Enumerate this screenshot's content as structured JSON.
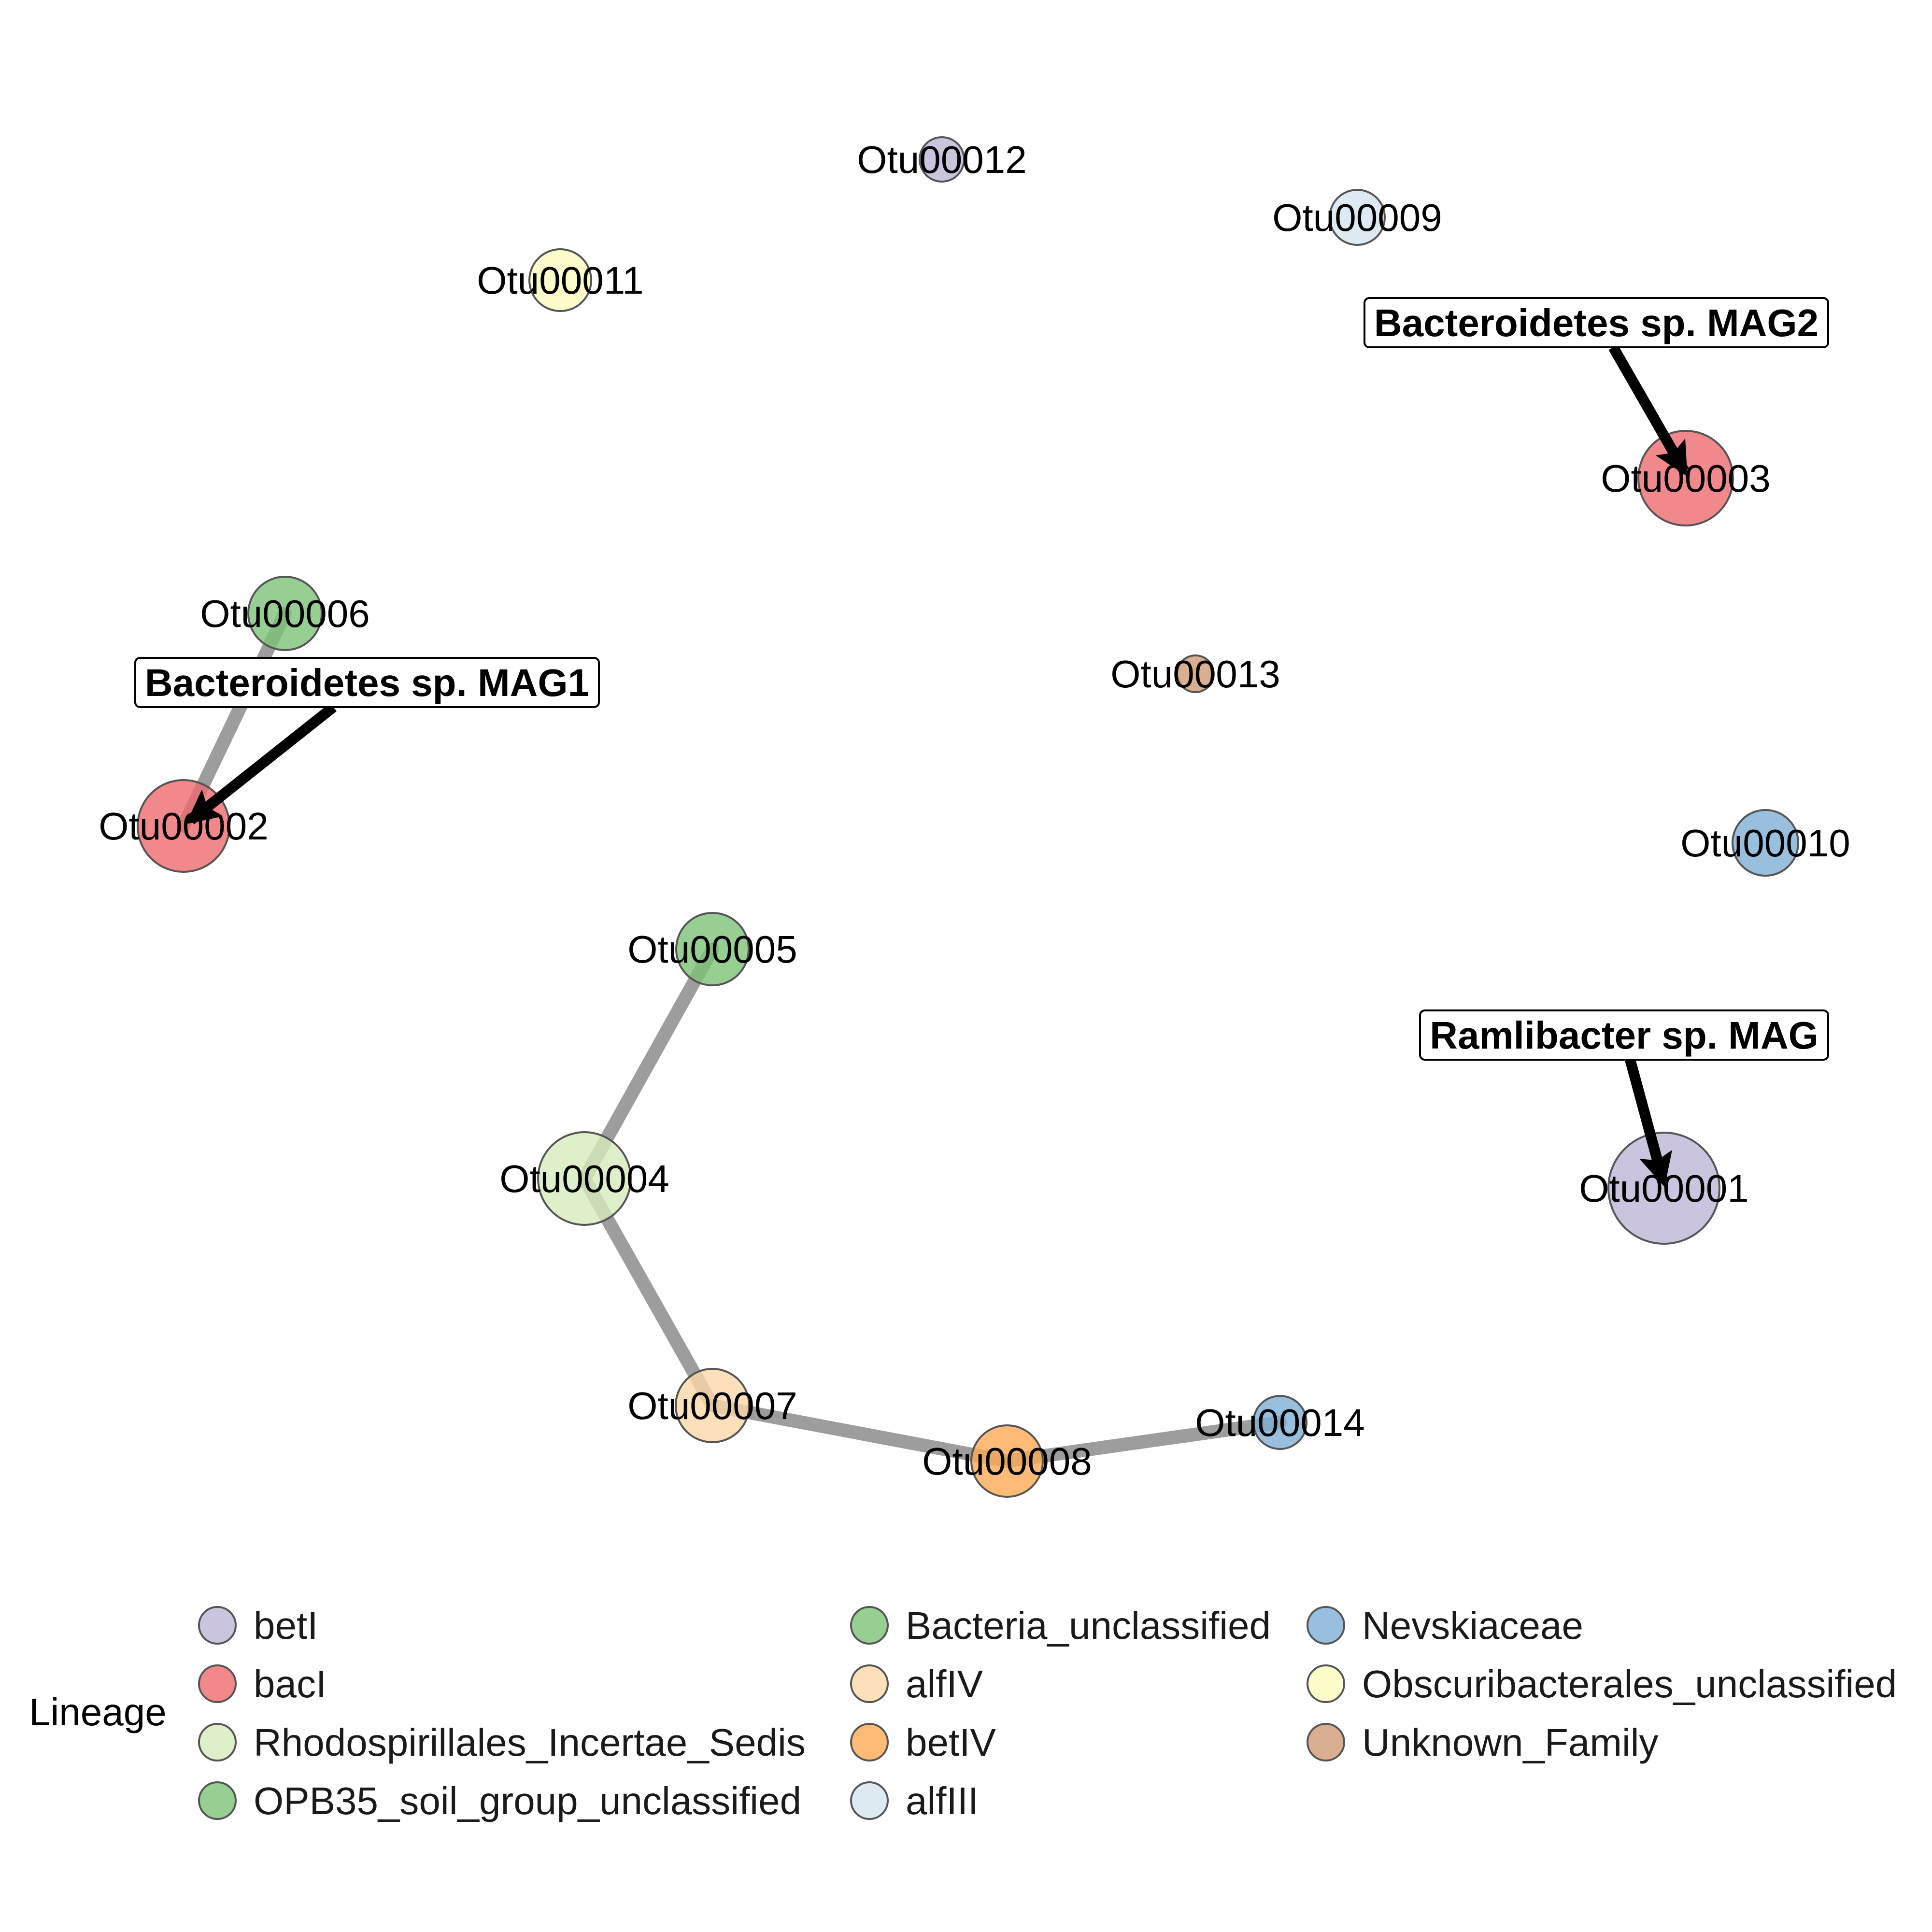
{
  "lineage_colors": {
    "betI": "#BEB5D6",
    "bacI": "#EE6A6E",
    "Rhodospirillales_Incertae_Sedis": "#D5ECBD",
    "OPB35_soil_group_unclassified": "#7DC277",
    "Bacteria_unclassified": "#7DC277",
    "alfIV": "#FDD7A7",
    "betIV": "#FDAA55",
    "alfIII": "#D6E5EF",
    "Nevskiaceae": "#7FAFD6",
    "Obscuribacterales_unclassified": "#FDFBBE",
    "Unknown_Family": "#D09A76"
  },
  "nodes": [
    {
      "id": "Otu00001",
      "lineage": "betI"
    },
    {
      "id": "Otu00002",
      "lineage": "bacI"
    },
    {
      "id": "Otu00003",
      "lineage": "bacI"
    },
    {
      "id": "Otu00004",
      "lineage": "Rhodospirillales_Incertae_Sedis"
    },
    {
      "id": "Otu00005",
      "lineage": "Bacteria_unclassified"
    },
    {
      "id": "Otu00006",
      "lineage": "OPB35_soil_group_unclassified"
    },
    {
      "id": "Otu00007",
      "lineage": "alfIV"
    },
    {
      "id": "Otu00008",
      "lineage": "betIV"
    },
    {
      "id": "Otu00009",
      "lineage": "alfIII"
    },
    {
      "id": "Otu00010",
      "lineage": "Nevskiaceae"
    },
    {
      "id": "Otu00011",
      "lineage": "Obscuribacterales_unclassified"
    },
    {
      "id": "Otu00012",
      "lineage": "betI"
    },
    {
      "id": "Otu00013",
      "lineage": "Unknown_Family"
    },
    {
      "id": "Otu00014",
      "lineage": "Nevskiaceae"
    }
  ],
  "edges": [
    {
      "source": "Otu00006",
      "target": "Otu00002"
    },
    {
      "source": "Otu00005",
      "target": "Otu00004"
    },
    {
      "source": "Otu00004",
      "target": "Otu00007"
    },
    {
      "source": "Otu00007",
      "target": "Otu00008"
    },
    {
      "source": "Otu00008",
      "target": "Otu00014"
    }
  ],
  "callouts": [
    {
      "label": "Bacteroidetes sp. MAG1",
      "target": "Otu00002"
    },
    {
      "label": "Bacteroidetes sp. MAG2",
      "target": "Otu00003"
    },
    {
      "label": "Ramlibacter sp. MAG",
      "target": "Otu00001"
    }
  ],
  "legend": {
    "title": "Lineage",
    "items": [
      "betI",
      "bacI",
      "Rhodospirillales_Incertae_Sedis",
      "OPB35_soil_group_unclassified",
      "Bacteria_unclassified",
      "alfIV",
      "betIV",
      "alfIII",
      "Nevskiaceae",
      "Obscuribacterales_unclassified",
      "Unknown_Family"
    ]
  }
}
